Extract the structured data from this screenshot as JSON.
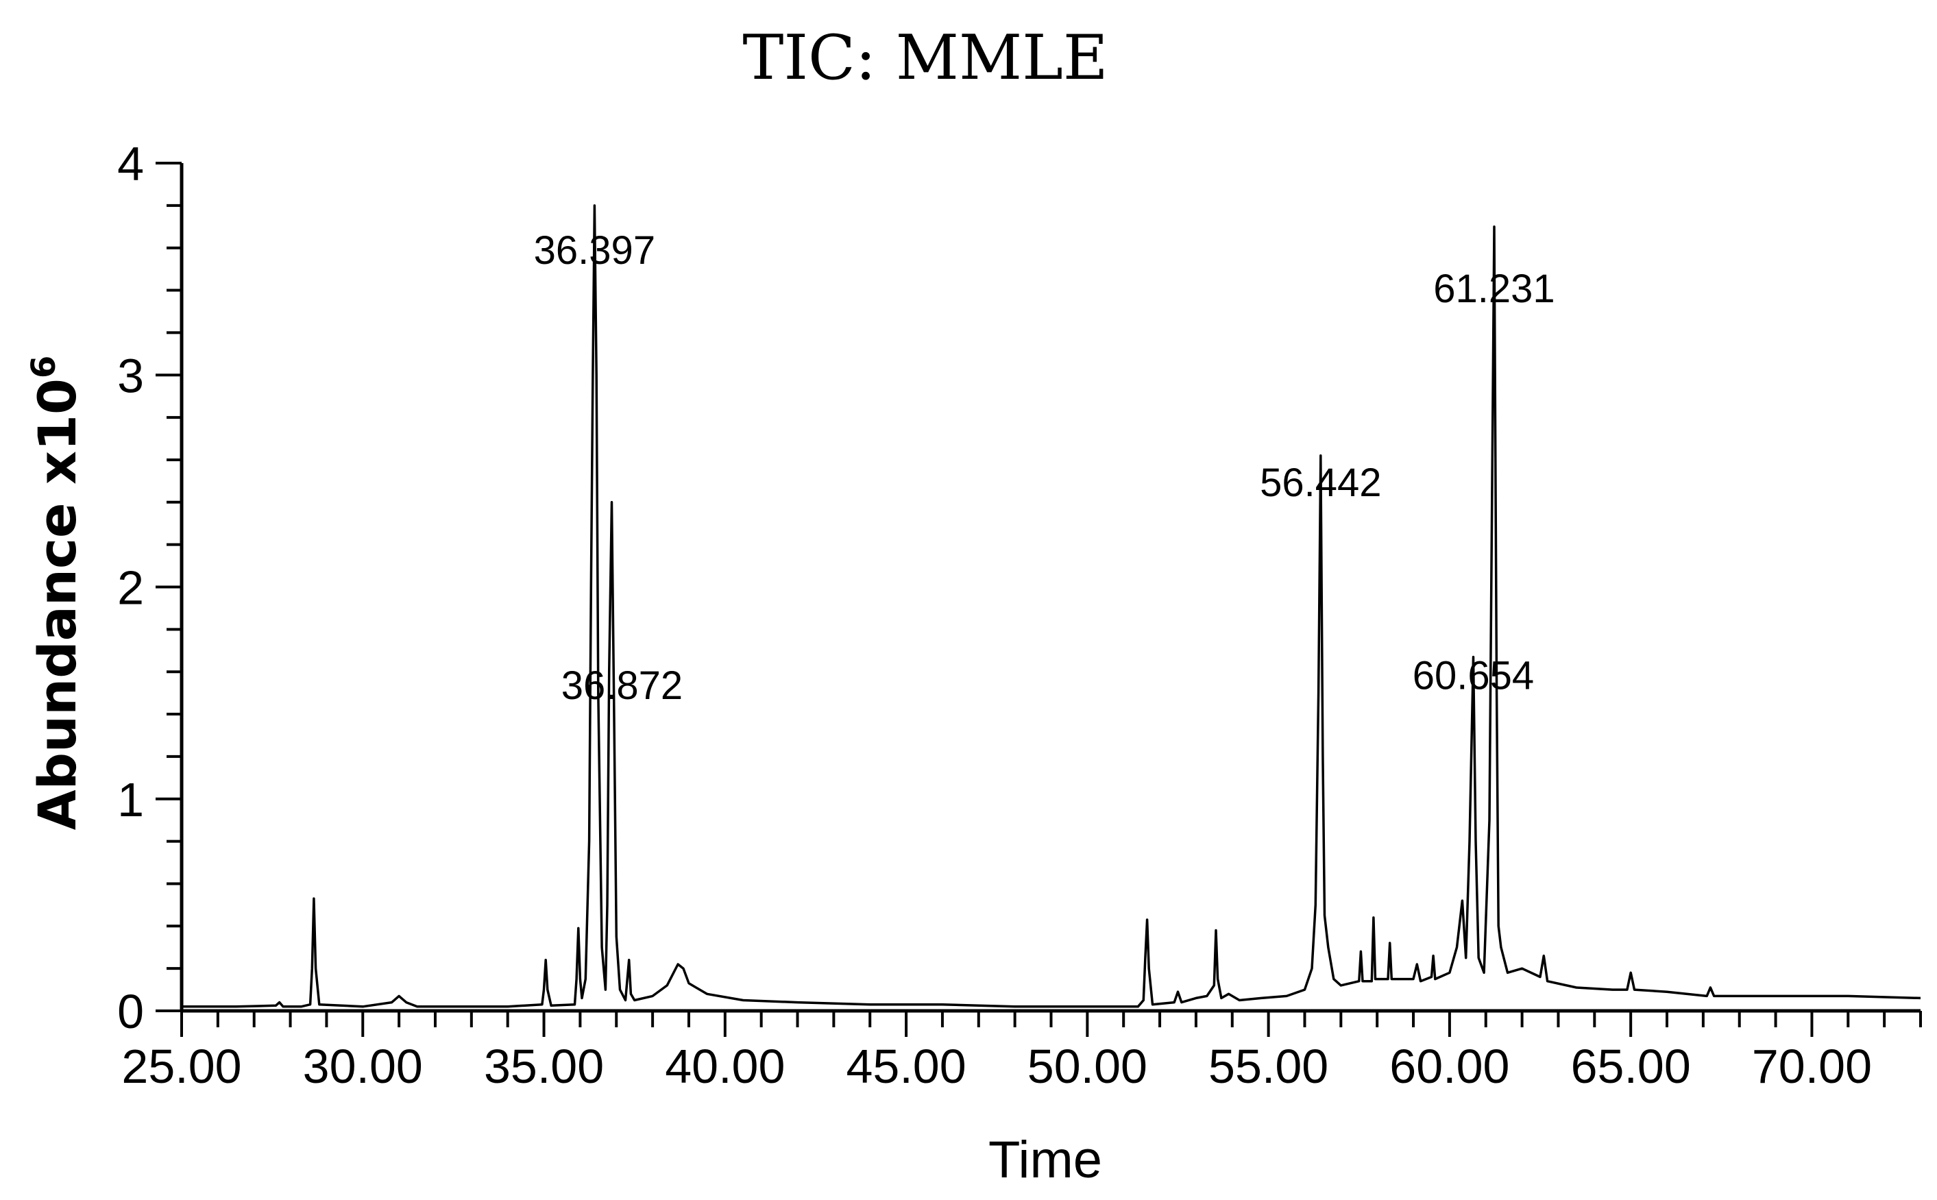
{
  "chart_data": {
    "type": "line",
    "title": "TIC: MMLE",
    "xlabel": "Time",
    "ylabel": "Abundance x10",
    "ylabel_exponent": "6",
    "xlim": [
      25.0,
      73.0
    ],
    "ylim": [
      0,
      4
    ],
    "x_ticks": [
      "25.00",
      "30.00",
      "35.00",
      "40.00",
      "45.00",
      "50.00",
      "55.00",
      "60.00",
      "65.00",
      "70.00"
    ],
    "x_tick_values": [
      25,
      30,
      35,
      40,
      45,
      50,
      55,
      60,
      65,
      70
    ],
    "y_ticks": [
      "0",
      "1",
      "2",
      "3",
      "4"
    ],
    "y_tick_values": [
      0,
      1,
      2,
      3,
      4
    ],
    "grid": false,
    "line_color": "#000000",
    "series": [
      {
        "points": [
          [
            25.0,
            0.02
          ],
          [
            26.5,
            0.02
          ],
          [
            27.6,
            0.025
          ],
          [
            27.7,
            0.04
          ],
          [
            27.8,
            0.02
          ],
          [
            28.3,
            0.02
          ],
          [
            28.55,
            0.03
          ],
          [
            28.6,
            0.2
          ],
          [
            28.65,
            0.53
          ],
          [
            28.7,
            0.2
          ],
          [
            28.8,
            0.03
          ],
          [
            30.0,
            0.02
          ],
          [
            30.8,
            0.04
          ],
          [
            31.0,
            0.07
          ],
          [
            31.2,
            0.04
          ],
          [
            31.5,
            0.02
          ],
          [
            34.0,
            0.02
          ],
          [
            34.95,
            0.03
          ],
          [
            35.0,
            0.1
          ],
          [
            35.05,
            0.24
          ],
          [
            35.1,
            0.1
          ],
          [
            35.2,
            0.025
          ],
          [
            35.85,
            0.03
          ],
          [
            35.9,
            0.15
          ],
          [
            35.95,
            0.39
          ],
          [
            36.0,
            0.15
          ],
          [
            36.05,
            0.06
          ],
          [
            36.15,
            0.15
          ],
          [
            36.25,
            0.8
          ],
          [
            36.3,
            2.0
          ],
          [
            36.35,
            3.0
          ],
          [
            36.397,
            3.8
          ],
          [
            36.45,
            3.0
          ],
          [
            36.5,
            1.5
          ],
          [
            36.6,
            0.3
          ],
          [
            36.7,
            0.1
          ],
          [
            36.75,
            0.5
          ],
          [
            36.8,
            1.6
          ],
          [
            36.872,
            2.4
          ],
          [
            36.93,
            1.5
          ],
          [
            37.0,
            0.35
          ],
          [
            37.1,
            0.1
          ],
          [
            37.25,
            0.05
          ],
          [
            37.35,
            0.24
          ],
          [
            37.4,
            0.08
          ],
          [
            37.5,
            0.05
          ],
          [
            38.0,
            0.07
          ],
          [
            38.4,
            0.12
          ],
          [
            38.7,
            0.22
          ],
          [
            38.85,
            0.2
          ],
          [
            39.0,
            0.13
          ],
          [
            39.5,
            0.08
          ],
          [
            40.5,
            0.05
          ],
          [
            42.0,
            0.04
          ],
          [
            44.0,
            0.03
          ],
          [
            46.0,
            0.03
          ],
          [
            48.0,
            0.02
          ],
          [
            50.0,
            0.02
          ],
          [
            51.4,
            0.02
          ],
          [
            51.55,
            0.05
          ],
          [
            51.6,
            0.25
          ],
          [
            51.65,
            0.43
          ],
          [
            51.7,
            0.2
          ],
          [
            51.8,
            0.03
          ],
          [
            52.4,
            0.04
          ],
          [
            52.5,
            0.09
          ],
          [
            52.6,
            0.04
          ],
          [
            53.0,
            0.06
          ],
          [
            53.3,
            0.07
          ],
          [
            53.5,
            0.12
          ],
          [
            53.55,
            0.38
          ],
          [
            53.6,
            0.15
          ],
          [
            53.7,
            0.06
          ],
          [
            53.9,
            0.08
          ],
          [
            54.2,
            0.05
          ],
          [
            54.8,
            0.06
          ],
          [
            55.5,
            0.07
          ],
          [
            56.0,
            0.1
          ],
          [
            56.2,
            0.2
          ],
          [
            56.3,
            0.5
          ],
          [
            56.38,
            1.5
          ],
          [
            56.442,
            2.62
          ],
          [
            56.5,
            1.2
          ],
          [
            56.55,
            0.45
          ],
          [
            56.65,
            0.3
          ],
          [
            56.8,
            0.15
          ],
          [
            57.0,
            0.12
          ],
          [
            57.5,
            0.14
          ],
          [
            57.55,
            0.28
          ],
          [
            57.6,
            0.14
          ],
          [
            57.85,
            0.14
          ],
          [
            57.9,
            0.44
          ],
          [
            57.95,
            0.15
          ],
          [
            58.3,
            0.15
          ],
          [
            58.35,
            0.32
          ],
          [
            58.4,
            0.15
          ],
          [
            59.0,
            0.15
          ],
          [
            59.1,
            0.22
          ],
          [
            59.2,
            0.14
          ],
          [
            59.5,
            0.16
          ],
          [
            59.55,
            0.26
          ],
          [
            59.6,
            0.15
          ],
          [
            60.0,
            0.18
          ],
          [
            60.2,
            0.3
          ],
          [
            60.35,
            0.52
          ],
          [
            60.45,
            0.25
          ],
          [
            60.55,
            0.8
          ],
          [
            60.654,
            1.67
          ],
          [
            60.72,
            0.8
          ],
          [
            60.8,
            0.25
          ],
          [
            60.95,
            0.18
          ],
          [
            61.1,
            0.9
          ],
          [
            61.231,
            3.7
          ],
          [
            61.3,
            1.5
          ],
          [
            61.35,
            0.4
          ],
          [
            61.42,
            0.3
          ],
          [
            61.6,
            0.18
          ],
          [
            62.0,
            0.2
          ],
          [
            62.5,
            0.16
          ],
          [
            62.6,
            0.26
          ],
          [
            62.7,
            0.14
          ],
          [
            63.5,
            0.11
          ],
          [
            64.5,
            0.1
          ],
          [
            64.9,
            0.1
          ],
          [
            65.0,
            0.18
          ],
          [
            65.1,
            0.1
          ],
          [
            66.0,
            0.09
          ],
          [
            67.1,
            0.07
          ],
          [
            67.2,
            0.11
          ],
          [
            67.3,
            0.07
          ],
          [
            69.0,
            0.07
          ],
          [
            71.0,
            0.07
          ],
          [
            73.0,
            0.06
          ]
        ]
      }
    ],
    "annotations": [
      {
        "label": "36.397",
        "x": 36.397,
        "y": 3.8
      },
      {
        "label": "36.872",
        "x": 36.872,
        "y": 2.4
      },
      {
        "label": "56.442",
        "x": 56.442,
        "y": 2.62
      },
      {
        "label": "60.654",
        "x": 60.654,
        "y": 1.67
      },
      {
        "label": "61.231",
        "x": 61.231,
        "y": 3.7
      }
    ]
  }
}
